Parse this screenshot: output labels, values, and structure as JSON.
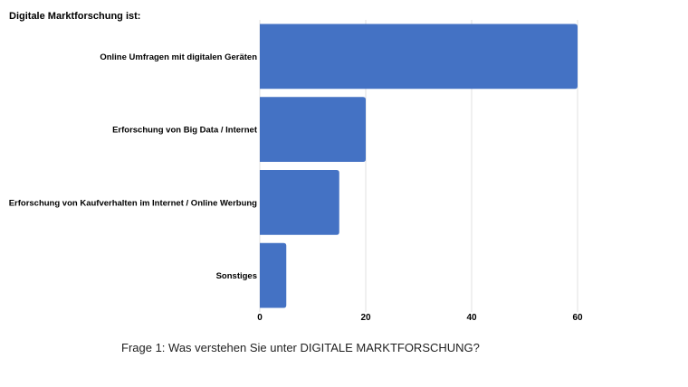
{
  "chart_data": {
    "type": "bar",
    "orientation": "horizontal",
    "title": "Digitale Marktforschung ist:",
    "categories": [
      "Online Umfragen mit digitalen Geräten",
      "Erforschung von Big Data / Internet",
      "Erforschung von Kaufverhalten im Internet / Online Werbung",
      "Sonstiges"
    ],
    "values": [
      60,
      20,
      15,
      5
    ],
    "xlim": [
      0,
      60
    ],
    "xticks": [
      0,
      20,
      40,
      60
    ],
    "grid": true,
    "bar_color": "#4472c4",
    "grid_color": "#e0e0e0"
  },
  "caption": "Frage 1: Was verstehen Sie unter DIGITALE MARKTFORSCHUNG?"
}
